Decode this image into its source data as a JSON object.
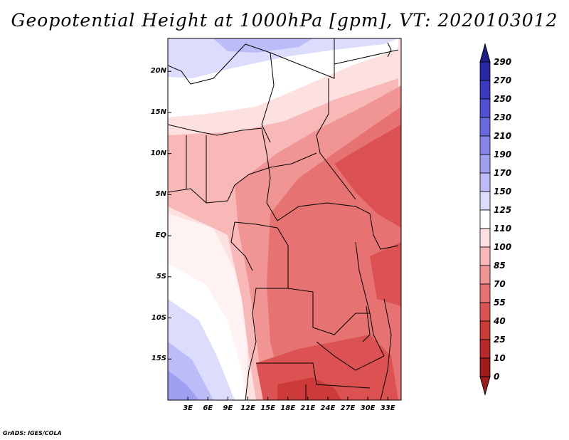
{
  "title": "Geopotential Height at 1000hPa [gpm], VT: 2020103012",
  "credit": "GrADS: IGES/COLA",
  "map": {
    "lat_labels": [
      "20N",
      "15N",
      "10N",
      "5N",
      "EQ",
      "5S",
      "10S",
      "15S"
    ],
    "lon_labels": [
      "3E",
      "6E",
      "9E",
      "12E",
      "15E",
      "18E",
      "21E",
      "24E",
      "27E",
      "30E",
      "33E"
    ],
    "lon_range_deg": [
      0,
      35
    ],
    "lat_range_deg": [
      -20,
      24
    ]
  },
  "colorbar": {
    "levels": [
      "290",
      "270",
      "250",
      "230",
      "210",
      "190",
      "170",
      "150",
      "125",
      "110",
      "100",
      "85",
      "70",
      "55",
      "40",
      "25",
      "10",
      "0"
    ],
    "colors": [
      "#1e1e8c",
      "#2828a8",
      "#3a3ac0",
      "#5050d2",
      "#6a6ae0",
      "#8484ea",
      "#a0a0f2",
      "#bcbcf8",
      "#dcdcfc",
      "#ffffff",
      "#fde0e0",
      "#f8b8b8",
      "#f09494",
      "#e67272",
      "#dc5252",
      "#cc3a3a",
      "#b82a2a",
      "#a01c1c"
    ]
  }
}
